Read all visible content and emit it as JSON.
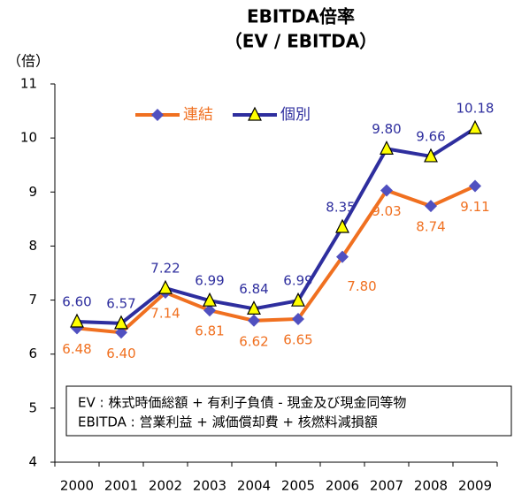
{
  "chart_data": {
    "type": "line",
    "title": "EBITDA倍率",
    "subtitle": "（EV / EBITDA）",
    "y_label": "（倍）",
    "categories": [
      "2000",
      "2001",
      "2002",
      "2003",
      "2004",
      "2005",
      "2006",
      "2007",
      "2008",
      "2009"
    ],
    "series": [
      {
        "name": "連結",
        "color": "#f07020",
        "marker_color": "#5050c0",
        "values": [
          6.48,
          6.4,
          7.14,
          6.81,
          6.62,
          6.65,
          7.8,
          9.03,
          8.74,
          9.11
        ]
      },
      {
        "name": "個別",
        "color": "#2e2e9e",
        "marker_color": "#ffff00",
        "values": [
          6.6,
          6.57,
          7.22,
          6.99,
          6.84,
          6.99,
          8.35,
          9.8,
          9.66,
          10.18
        ]
      }
    ],
    "ylim": [
      4,
      11
    ],
    "yticks": [
      4,
      5,
      6,
      7,
      8,
      9,
      10,
      11
    ],
    "notes": [
      "EV : 株式時価総額 + 有利子負債 - 現金及び現金同等物",
      "EBITDA : 営業利益 + 減価償却費 + 核燃料減損額"
    ],
    "grid": false
  }
}
